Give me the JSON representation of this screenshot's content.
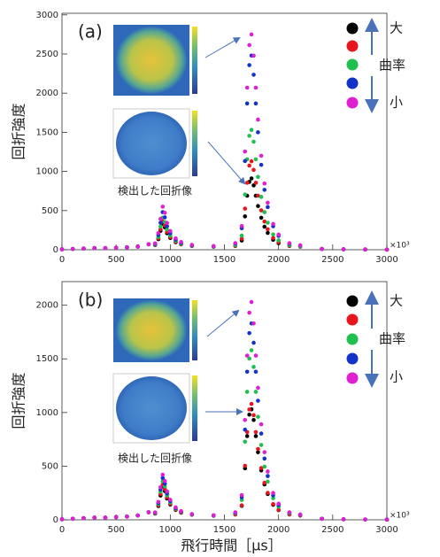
{
  "chart_data": [
    {
      "type": "scatter",
      "panel_label": "(a)",
      "ylabel": "回折強度",
      "x_multiplier": "×10³",
      "curvature_labels": [
        "大",
        "曲率",
        "小"
      ],
      "inset_caption": "検出した回折像",
      "xlim": [
        0,
        3000
      ],
      "ylim": [
        0,
        3020
      ],
      "xticks": [
        0,
        500,
        1000,
        1500,
        2000,
        2500,
        3000
      ],
      "yticks": [
        0,
        500,
        1000,
        1500,
        2000,
        2500,
        3000
      ],
      "x": [
        0,
        100,
        200,
        300,
        400,
        500,
        600,
        700,
        800,
        860,
        890,
        910,
        930,
        950,
        970,
        1000,
        1050,
        1100,
        1200,
        1400,
        1600,
        1660,
        1690,
        1710,
        1730,
        1750,
        1770,
        1790,
        1810,
        1840,
        1870,
        1900,
        1950,
        2000,
        2100,
        2200,
        2400,
        2600,
        2800,
        3000
      ],
      "series": [
        {
          "color": "#000000",
          "values": [
            5,
            10,
            15,
            20,
            20,
            25,
            30,
            40,
            70,
            60,
            135,
            240,
            330,
            285,
            210,
            150,
            96,
            69,
            48,
            39,
            48,
            118,
            426,
            690,
            866,
            910,
            822,
            690,
            558,
            408,
            294,
            215,
            127,
            83,
            48,
            39,
            10,
            5,
            3,
            2
          ]
        },
        {
          "color": "#e8141e",
          "values": [
            5,
            10,
            15,
            20,
            20,
            25,
            30,
            40,
            70,
            63,
            146,
            261,
            360,
            311,
            228,
            162,
            103,
            73,
            50,
            40,
            52,
            140,
            525,
            855,
            1075,
            1130,
            1020,
            855,
            690,
            503,
            360,
            261,
            151,
            96,
            52,
            41,
            10,
            5,
            3,
            2
          ]
        },
        {
          "color": "#1fbf50",
          "values": [
            5,
            10,
            15,
            20,
            20,
            25,
            30,
            40,
            70,
            68,
            163,
            296,
            410,
            353,
            258,
            182,
            114,
            79,
            53,
            41,
            60,
            180,
            705,
            1155,
            1455,
            1530,
            1380,
            1155,
            930,
            675,
            480,
            345,
            195,
            120,
            60,
            45,
            10,
            5,
            3,
            2
          ]
        },
        {
          "color": "#1232c8",
          "values": [
            5,
            10,
            15,
            20,
            20,
            25,
            30,
            40,
            70,
            75,
            188,
            345,
            480,
            413,
            300,
            210,
            129,
            89,
            57,
            44,
            79,
            275,
            1133,
            1868,
            2358,
            2480,
            2235,
            1868,
            1500,
            1084,
            765,
            545,
            300,
            177,
            79,
            55,
            10,
            5,
            3,
            2
          ]
        },
        {
          "color": "#e01ed2",
          "values": [
            5,
            10,
            15,
            20,
            20,
            25,
            30,
            40,
            70,
            82,
            212,
            394,
            550,
            472,
            342,
            238,
            144,
            98,
            61,
            46,
            84,
            302,
            1254,
            2070,
            2614,
            2750,
            2478,
            2070,
            1662,
            1200,
            846,
            601,
            329,
            193,
            84,
            57,
            10,
            5,
            3,
            2
          ]
        }
      ]
    },
    {
      "type": "scatter",
      "panel_label": "(b)",
      "ylabel": "回折強度",
      "x_multiplier": "×10³",
      "xlabel": "飛行時間［μs］",
      "curvature_labels": [
        "大",
        "曲率",
        "小"
      ],
      "inset_caption": "検出した回折像",
      "xlim": [
        0,
        3000
      ],
      "ylim": [
        0,
        2220
      ],
      "xticks": [
        0,
        500,
        1000,
        1500,
        2000,
        2500,
        3000
      ],
      "yticks": [
        0,
        500,
        1000,
        1500,
        2000
      ],
      "x": [
        0,
        100,
        200,
        300,
        400,
        500,
        600,
        700,
        800,
        860,
        890,
        910,
        930,
        950,
        970,
        1000,
        1050,
        1100,
        1200,
        1400,
        1600,
        1660,
        1690,
        1710,
        1730,
        1750,
        1770,
        1790,
        1810,
        1840,
        1870,
        1900,
        1950,
        2000,
        2100,
        2200,
        2400,
        2600,
        2800,
        3000
      ],
      "series": [
        {
          "color": "#000000",
          "values": [
            5,
            10,
            15,
            20,
            20,
            25,
            30,
            40,
            70,
            58,
            128,
            226,
            310,
            268,
            198,
            142,
            92,
            66,
            47,
            38,
            50,
            130,
            480,
            780,
            980,
            1030,
            930,
            780,
            630,
            460,
            330,
            240,
            140,
            90,
            50,
            40,
            10,
            5,
            3,
            2
          ]
        },
        {
          "color": "#e8141e",
          "values": [
            5,
            10,
            15,
            20,
            20,
            25,
            30,
            40,
            70,
            60,
            135,
            240,
            330,
            285,
            210,
            150,
            96,
            69,
            48,
            39,
            51,
            135,
            503,
            818,
            1028,
            1080,
            975,
            818,
            660,
            482,
            345,
            251,
            146,
            93,
            51,
            41,
            10,
            5,
            3,
            2
          ]
        },
        {
          "color": "#1fbf50",
          "values": [
            5,
            10,
            15,
            20,
            20,
            25,
            30,
            40,
            70,
            63,
            146,
            261,
            360,
            311,
            228,
            162,
            103,
            73,
            50,
            40,
            61,
            185,
            728,
            1193,
            1503,
            1580,
            1425,
            1193,
            960,
            697,
            495,
            356,
            201,
            123,
            61,
            46,
            10,
            5,
            3,
            2
          ]
        },
        {
          "color": "#1232c8",
          "values": [
            5,
            10,
            15,
            20,
            20,
            25,
            30,
            40,
            70,
            66,
            156,
            282,
            390,
            336,
            246,
            174,
            109,
            77,
            52,
            41,
            66,
            210,
            840,
            1380,
            1740,
            1830,
            1650,
            1380,
            1110,
            804,
            570,
            408,
            228,
            138,
            66,
            48,
            10,
            5,
            3,
            2
          ]
        },
        {
          "color": "#e01ed2",
          "values": [
            5,
            10,
            15,
            20,
            20,
            25,
            30,
            40,
            70,
            69,
            167,
            303,
            420,
            362,
            264,
            186,
            116,
            81,
            53,
            42,
            70,
            230,
            930,
            1530,
            1930,
            2030,
            1830,
            1530,
            1230,
            890,
            630,
            450,
            250,
            150,
            70,
            50,
            10,
            5,
            3,
            2
          ]
        }
      ]
    }
  ]
}
